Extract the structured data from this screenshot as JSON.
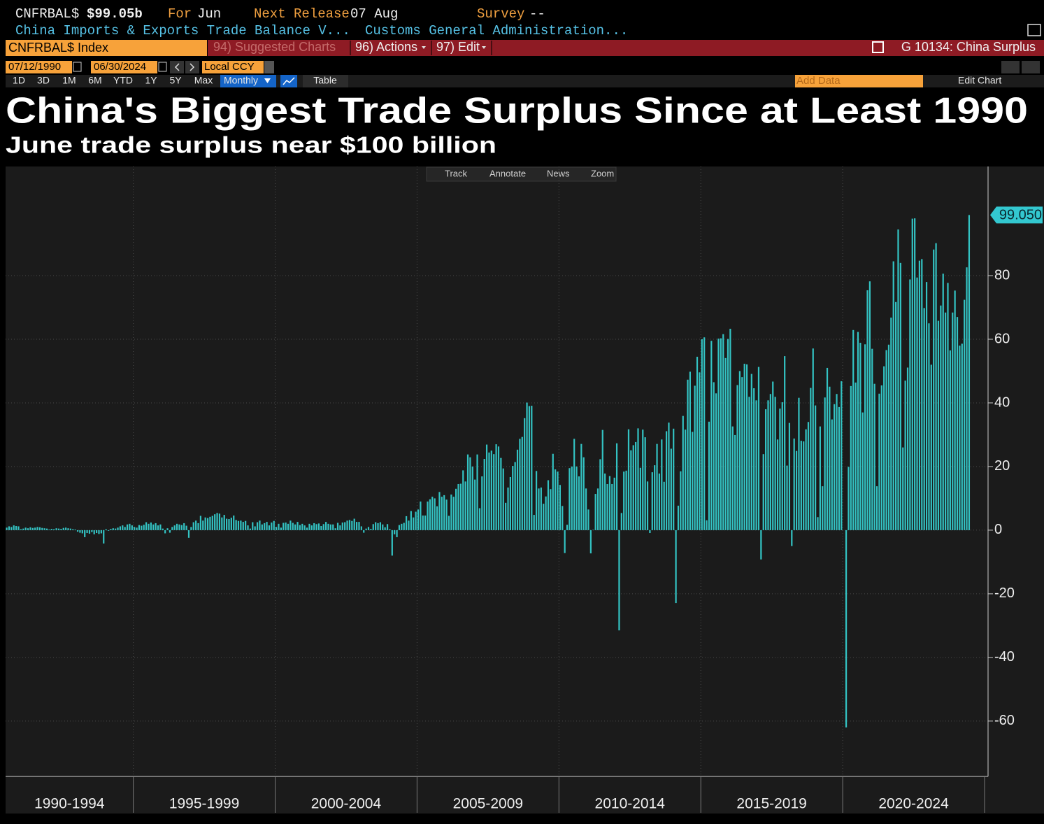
{
  "header": {
    "ticker": "CNFRBAL$",
    "last": "$99.05b",
    "for_label": "For",
    "for_value": "Jun",
    "next_label": "Next Release",
    "next_value": "07 Aug",
    "survey_label": "Survey",
    "survey_value": "--",
    "description": "China Imports & Exports Trade Balance V...",
    "source": "Customs General Administration..."
  },
  "toolbar": {
    "security": "CNFRBAL$ Index",
    "suggested": "94) Suggested Charts",
    "actions": "96) Actions",
    "edit": "97) Edit",
    "chart_id": "G 10134: China Surplus",
    "start_date": "07/12/1990",
    "end_date": "06/30/2024",
    "currency": "Local CCY",
    "periods": [
      "1D",
      "3D",
      "1M",
      "6M",
      "YTD",
      "1Y",
      "5Y",
      "Max"
    ],
    "frequency": "Monthly",
    "table": "Table",
    "add_data": "Add Data",
    "edit_chart": "Edit Chart",
    "chart_tools": [
      "Track",
      "Annotate",
      "News",
      "Zoom"
    ]
  },
  "chart_data": {
    "type": "bar",
    "title": "China's Biggest Trade Surplus Since at Least 1990",
    "subtitle": "June trade surplus near $100 billion",
    "color": "#33c3c3",
    "grid": true,
    "last_label": "99.050",
    "ylim": [
      -77.4,
      114.3
    ],
    "yticks": [
      -60,
      -40,
      -20,
      0,
      20,
      40,
      60,
      80
    ],
    "groups": [
      {
        "label": "1990-1994",
        "values": [
          0.8,
          1.2,
          1.0,
          1.5,
          1.3,
          1.2,
          0.3,
          0.5,
          0.8,
          0.6,
          0.9,
          0.7,
          0.8,
          1.0,
          0.9,
          0.7,
          0.6,
          0.5,
          0.2,
          0.4,
          0.3,
          0.6,
          0.5,
          0.4,
          0.7,
          0.8,
          0.6,
          0.5,
          0.3,
          0.2,
          -0.5,
          -0.8,
          -1.0,
          -2.2,
          -0.9,
          -1.1,
          -0.6,
          -1.3,
          -0.9,
          -1.2,
          -1.0,
          -4.2,
          0.3,
          -0.2,
          0.4,
          0.6,
          0.5,
          0.8,
          1.2,
          1.5,
          1.0,
          1.8,
          2.0,
          1.5
        ]
      },
      {
        "label": "1995-1999",
        "values": [
          1.0,
          0.8,
          1.6,
          1.4,
          1.7,
          2.5,
          2.0,
          2.4,
          1.8,
          2.2,
          1.5,
          1.8,
          0.5,
          -1.0,
          0.6,
          -0.8,
          1.0,
          1.5,
          2.0,
          1.8,
          1.6,
          2.2,
          1.4,
          -2.4,
          1.0,
          2.5,
          3.0,
          2.2,
          4.5,
          3.0,
          4.0,
          3.8,
          4.2,
          4.5,
          5.0,
          5.4,
          5.2,
          4.0,
          4.8,
          3.6,
          3.5,
          3.9,
          4.6,
          3.2,
          2.9,
          3.0,
          2.6,
          2.9,
          1.5,
          0.5,
          2.5,
          1.2,
          2.5,
          3.0,
          1.8,
          2.2,
          2.6,
          1.5,
          2.4,
          2.9
        ]
      },
      {
        "label": "2000-2004",
        "values": [
          1.0,
          2.0,
          0.8,
          2.3,
          2.4,
          2.0,
          3.0,
          2.3,
          1.8,
          2.6,
          1.6,
          2.0,
          1.5,
          0.8,
          2.0,
          1.5,
          2.2,
          1.9,
          2.1,
          1.3,
          1.9,
          2.6,
          2.0,
          1.8,
          1.8,
          0.6,
          2.3,
          1.5,
          2.4,
          2.5,
          3.0,
          3.2,
          2.9,
          3.6,
          2.6,
          2.6,
          1.2,
          -0.8,
          0.5,
          1.0,
          0.4,
          1.9,
          2.5,
          2.2,
          2.5,
          1.8,
          0.9,
          1.9,
          0.3,
          -8.0,
          -1.3,
          -2.2,
          1.6,
          2.0,
          2.3,
          4.4,
          3.0,
          6.0,
          4.0,
          5.8
        ]
      },
      {
        "label": "2005-2009",
        "values": [
          6.5,
          9.0,
          4.6,
          4.6,
          9.0,
          9.7,
          10.5,
          10.0,
          7.5,
          12.0,
          10.5,
          11.0,
          9.6,
          4.5,
          11.2,
          10.5,
          13.0,
          14.5,
          14.6,
          18.8,
          15.3,
          23.8,
          22.9,
          20.0,
          15.9,
          23.8,
          6.9,
          16.9,
          22.4,
          26.9,
          24.4,
          25.0,
          23.9,
          27.0,
          26.3,
          22.7,
          19.4,
          8.6,
          13.4,
          16.7,
          20.2,
          21.4,
          25.3,
          28.7,
          29.3,
          35.2,
          40.1,
          39.0,
          39.1,
          4.8,
          18.6,
          13.1,
          13.4,
          8.3,
          10.6,
          15.7,
          12.9,
          24.0,
          19.1,
          18.4
        ]
      },
      {
        "label": "2010-2014",
        "values": [
          14.2,
          7.6,
          -7.2,
          1.7,
          19.5,
          20.0,
          28.7,
          20.0,
          16.9,
          27.1,
          22.9,
          13.1,
          6.5,
          -7.3,
          0.1,
          11.4,
          13.1,
          22.3,
          31.5,
          17.8,
          14.5,
          17.0,
          14.5,
          16.5,
          27.3,
          -31.5,
          5.4,
          18.4,
          18.7,
          31.7,
          25.1,
          26.7,
          27.7,
          32.0,
          19.6,
          31.6,
          29.2,
          15.3,
          -0.9,
          18.2,
          20.4,
          27.1,
          17.8,
          28.5,
          15.2,
          31.1,
          33.8,
          25.6,
          31.9,
          -22.9,
          7.7,
          18.5,
          35.9,
          31.6,
          47.3,
          49.8,
          30.9,
          45.4,
          54.5,
          49.6
        ]
      },
      {
        "label": "2015-2019",
        "values": [
          60.0,
          60.6,
          3.1,
          34.1,
          59.5,
          46.5,
          43.0,
          60.2,
          60.3,
          61.6,
          54.1,
          60.1,
          63.3,
          32.6,
          29.9,
          45.6,
          50.0,
          48.1,
          52.3,
          52.1,
          41.9,
          49.1,
          44.6,
          40.8,
          51.3,
          -9.2,
          23.9,
          38.0,
          40.8,
          42.8,
          46.7,
          41.9,
          28.5,
          38.2,
          40.2,
          54.7,
          20.3,
          33.7,
          -5.0,
          28.8,
          24.9,
          41.6,
          28.1,
          27.9,
          31.7,
          34.0,
          44.7,
          57.1,
          39.2,
          4.1,
          32.6,
          13.8,
          41.7,
          51.0,
          45.1,
          34.8,
          39.6,
          42.8,
          38.7,
          46.8
        ]
      },
      {
        "label": "2020-2024",
        "values": [
          null,
          -62.0,
          19.9,
          45.3,
          62.9,
          46.4,
          62.3,
          58.9,
          37.0,
          58.4,
          75.4,
          78.2,
          57.0,
          46.0,
          13.8,
          42.9,
          45.5,
          51.5,
          56.6,
          58.3,
          66.8,
          84.5,
          71.7,
          94.5,
          84.0,
          26.0,
          47.0,
          51.1,
          78.8,
          97.9,
          98.0,
          79.4,
          84.7,
          85.2,
          69.8,
          78.0,
          65.0,
          52.0,
          88.2,
          90.2,
          65.8,
          70.6,
          80.6,
          68.4,
          77.7,
          56.5,
          68.4,
          75.3,
          67.0,
          58.0,
          58.6,
          72.4,
          82.6,
          99.05
        ]
      }
    ]
  }
}
